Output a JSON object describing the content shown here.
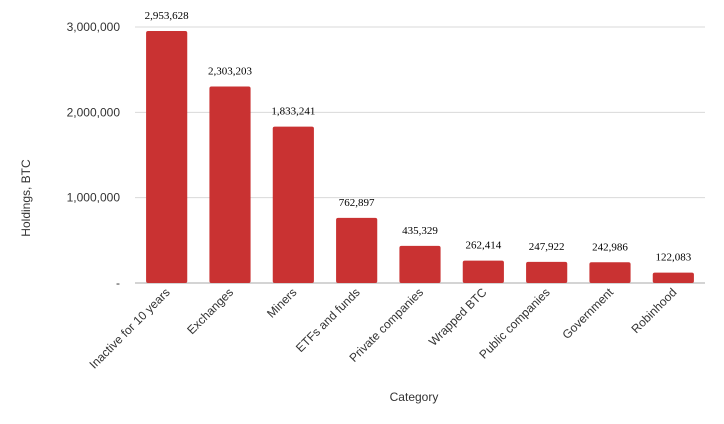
{
  "chart_data": {
    "type": "bar",
    "title": "",
    "xlabel": "Category",
    "ylabel": "Holdings, BTC",
    "categories": [
      "Inactive for 10 years",
      "Exchanges",
      "Miners",
      "ETFs and funds",
      "Private companies",
      "Wrapped BTC",
      "Public companies",
      "Government",
      "Robinhood"
    ],
    "values": [
      2953628,
      2303203,
      1833241,
      762897,
      435329,
      262414,
      247922,
      242986,
      122083
    ],
    "data_labels": [
      "2,953,628",
      "2,303,203",
      "1,833,241",
      "762,897",
      "435,329",
      "262,414",
      "247,922",
      "242,986",
      "122,083"
    ],
    "ylim": [
      0,
      3000000
    ],
    "yticks": [
      0,
      1000000,
      2000000,
      3000000
    ],
    "ytick_labels": [
      "-",
      "1,000,000",
      "2,000,000",
      "3,000,000"
    ],
    "grid": true,
    "legend": "none",
    "bar_color": "#c93232",
    "grid_color": "#d9d9d9"
  }
}
